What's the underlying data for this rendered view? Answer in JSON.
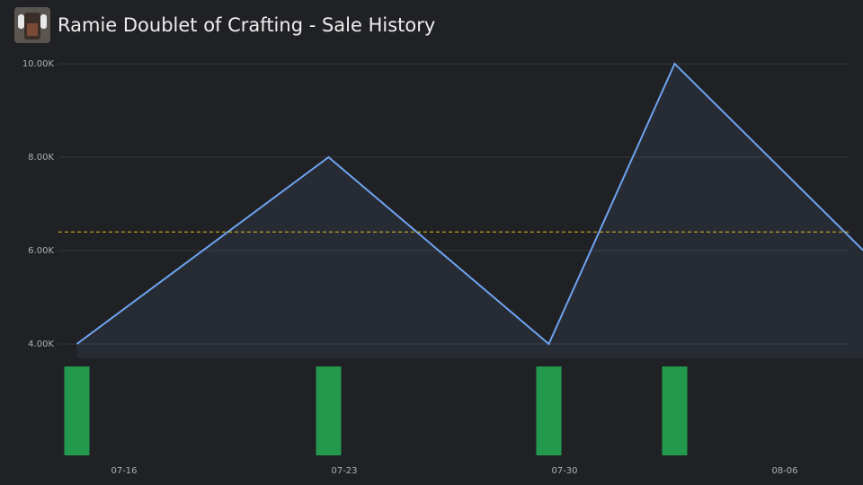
{
  "chart_data": {
    "type": "line",
    "title": "Ramie Doublet of Crafting - Sale History",
    "x": [
      "07-14",
      "07-22",
      "07-29",
      "08-02",
      "08-08"
    ],
    "values": [
      4000,
      8000,
      4000,
      10000,
      6000
    ],
    "color": "#6ea3f0",
    "volume": [
      1,
      1,
      1,
      1,
      null
    ],
    "volume_color": "#22994d",
    "average": 6400,
    "average_color": "#e0c020",
    "ylim": [
      3700,
      10000
    ],
    "yticks": [
      {
        "value": 4000,
        "label": "4.00K"
      },
      {
        "value": 6000,
        "label": "6.00K"
      },
      {
        "value": 8000,
        "label": "8.00K"
      },
      {
        "value": 10000,
        "label": "10.00K"
      }
    ],
    "xticks": [
      "07-16",
      "07-23",
      "07-30",
      "08-06"
    ],
    "grid": true
  }
}
